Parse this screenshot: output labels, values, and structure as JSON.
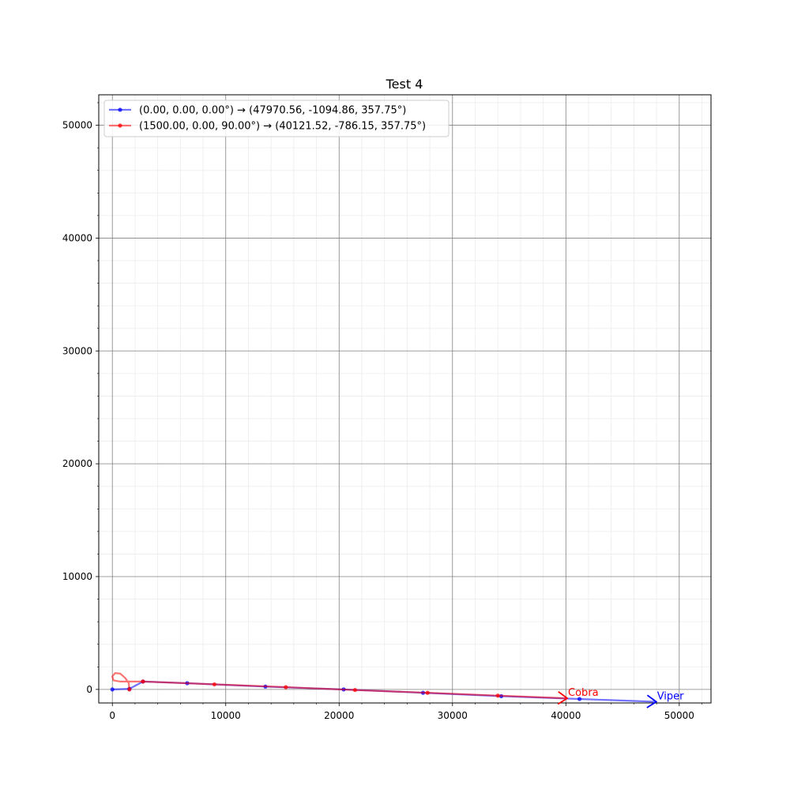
{
  "chart_data": {
    "type": "line",
    "title": "Test 4",
    "xlabel": "",
    "ylabel": "",
    "xlim": [
      -1200,
      52800
    ],
    "ylim": [
      -1200,
      52700
    ],
    "xticks": [
      0,
      10000,
      20000,
      30000,
      40000,
      50000
    ],
    "yticks": [
      0,
      10000,
      20000,
      30000,
      40000,
      50000
    ],
    "grid": true,
    "legend_position": "top-left",
    "series": [
      {
        "name": "(0.00, 0.00, 0.00°) → (47970.56, -1094.86, 357.75°)",
        "color": "#0000ff",
        "line_points": [
          {
            "x": 0,
            "y": 0
          },
          {
            "x": 1500,
            "y": 50
          },
          {
            "x": 2700,
            "y": 700
          },
          {
            "x": 6600,
            "y": 550
          },
          {
            "x": 13500,
            "y": 250
          },
          {
            "x": 20400,
            "y": 0
          },
          {
            "x": 27400,
            "y": -300
          },
          {
            "x": 34300,
            "y": -600
          },
          {
            "x": 41200,
            "y": -850
          },
          {
            "x": 47970.56,
            "y": -1094.86
          }
        ],
        "markers": [
          {
            "x": 0,
            "y": 0
          },
          {
            "x": 1500,
            "y": 50
          },
          {
            "x": 2700,
            "y": 700
          },
          {
            "x": 6600,
            "y": 550
          },
          {
            "x": 13500,
            "y": 250
          },
          {
            "x": 20400,
            "y": 0
          },
          {
            "x": 27400,
            "y": -300
          },
          {
            "x": 34300,
            "y": -600
          },
          {
            "x": 41200,
            "y": -850
          }
        ],
        "end_label": "Viper",
        "end": {
          "x": 47970.56,
          "y": -1094.86
        }
      },
      {
        "name": "(1500.00, 0.00, 90.00°) → (40121.52, -786.15, 357.75°)",
        "color": "#ff0000",
        "line_points": [
          {
            "x": 1500,
            "y": 0
          },
          {
            "x": 1450,
            "y": 550
          },
          {
            "x": 1150,
            "y": 1000
          },
          {
            "x": 700,
            "y": 1400
          },
          {
            "x": 250,
            "y": 1450
          },
          {
            "x": 0,
            "y": 1150
          },
          {
            "x": 100,
            "y": 800
          },
          {
            "x": 700,
            "y": 700
          },
          {
            "x": 2000,
            "y": 700
          },
          {
            "x": 2700,
            "y": 700
          },
          {
            "x": 9000,
            "y": 450
          },
          {
            "x": 15300,
            "y": 200
          },
          {
            "x": 21400,
            "y": -50
          },
          {
            "x": 27800,
            "y": -300
          },
          {
            "x": 34000,
            "y": -550
          },
          {
            "x": 40121.52,
            "y": -786.15
          }
        ],
        "markers": [
          {
            "x": 1500,
            "y": 0
          },
          {
            "x": 2700,
            "y": 700
          },
          {
            "x": 9000,
            "y": 450
          },
          {
            "x": 15300,
            "y": 200
          },
          {
            "x": 21400,
            "y": -50
          },
          {
            "x": 27800,
            "y": -300
          },
          {
            "x": 34000,
            "y": -550
          }
        ],
        "end_label": "Cobra",
        "end": {
          "x": 40121.52,
          "y": -786.15
        }
      }
    ]
  }
}
